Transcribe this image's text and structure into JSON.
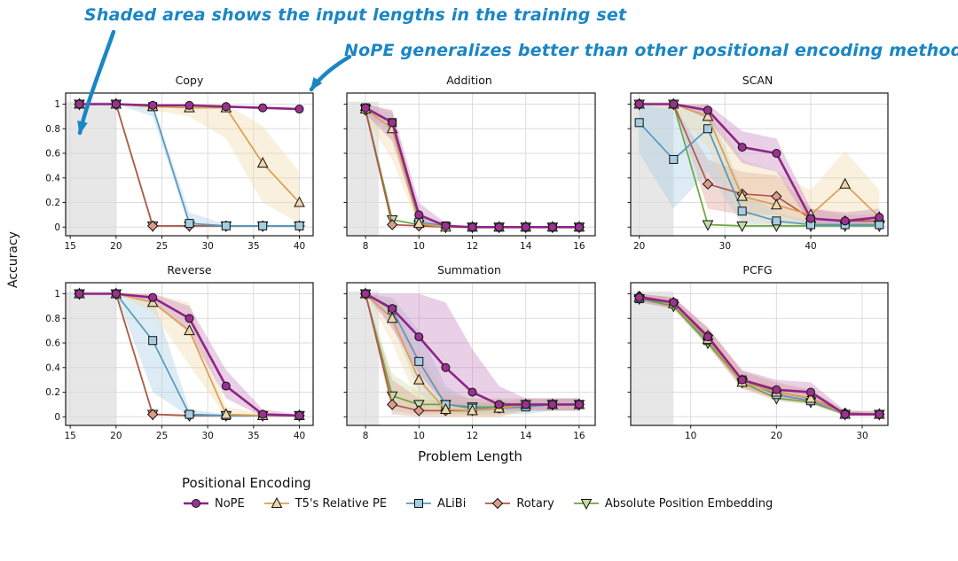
{
  "annotations": [
    {
      "text": "Shaded area shows the input lengths in the training set"
    },
    {
      "text": "NoPE generalizes better than other positional encoding methods"
    }
  ],
  "ylabel": "Accuracy",
  "xlabel": "Problem Length",
  "legend": {
    "title": "Positional Encoding"
  },
  "colors": {
    "annotation_blue": "#1a86c4",
    "train_region_gray": "#d7d7d7",
    "grid_gray": "#dcdcdc"
  },
  "series_styles": [
    {
      "name": "NoPE",
      "marker": "circle",
      "line_color": "#8e2486",
      "fill_color": "#9a3390",
      "band_color": "#c583bd",
      "line_width": 2.6
    },
    {
      "name": "T5's Relative PE",
      "marker": "triangle-up",
      "line_color": "#dc9f4e",
      "fill_color": "#eed7a8",
      "band_color": "#eed7a8",
      "line_width": 1.7
    },
    {
      "name": "ALiBi",
      "marker": "square",
      "line_color": "#5598be",
      "fill_color": "#a6cde2",
      "band_color": "#a6cde2",
      "line_width": 1.7
    },
    {
      "name": "Rotary",
      "marker": "diamond",
      "line_color": "#b2574a",
      "fill_color": "#dd9c8b",
      "band_color": "#dd9c8b",
      "line_width": 1.7
    },
    {
      "name": "Absolute Position Embedding",
      "marker": "triangle-down",
      "line_color": "#6aa63c",
      "fill_color": "#c2dda6",
      "band_color": "#c2dda6",
      "line_width": 1.7
    }
  ],
  "chart_data": [
    {
      "type": "line",
      "title": "Copy",
      "x": [
        16,
        20,
        24,
        28,
        32,
        36,
        40
      ],
      "xlim": [
        14.5,
        41.5
      ],
      "xticks": [
        15,
        20,
        25,
        30,
        35,
        40
      ],
      "ylim": [
        -0.07,
        1.09
      ],
      "yticks": [
        0,
        0.2,
        0.4,
        0.6,
        0.8,
        1
      ],
      "train_region": [
        14.5,
        20
      ],
      "show_ytick_labels": true,
      "series": [
        {
          "name": "NoPE",
          "values": [
            1,
            1,
            0.99,
            0.99,
            0.98,
            0.97,
            0.96
          ]
        },
        {
          "name": "T5's Relative PE",
          "values": [
            1,
            1,
            0.98,
            0.97,
            0.97,
            0.52,
            0.2
          ],
          "lo": [
            1,
            1,
            0.95,
            0.9,
            0.72,
            0.2,
            0.03
          ],
          "hi": [
            1,
            1,
            1,
            1,
            1,
            0.82,
            0.45
          ]
        },
        {
          "name": "ALiBi",
          "values": [
            1,
            1,
            0.98,
            0.03,
            0.01,
            0.01,
            0.01
          ],
          "lo": [
            1,
            1,
            0.9,
            0,
            0,
            0,
            0
          ],
          "hi": [
            1,
            1,
            1,
            0.12,
            0.02,
            0.02,
            0.02
          ]
        },
        {
          "name": "Rotary",
          "values": [
            1,
            1,
            0.01,
            0.01,
            0.01,
            0.01,
            0.01
          ]
        },
        {
          "name": "Absolute Position Embedding",
          "values": [
            1,
            1,
            0.01,
            0.01,
            0.01,
            0.01,
            0.01
          ]
        }
      ]
    },
    {
      "type": "line",
      "title": "Addition",
      "x": [
        8,
        9,
        10,
        11,
        12,
        13,
        14,
        15,
        16
      ],
      "xlim": [
        7.3,
        16.6
      ],
      "xticks": [
        8,
        10,
        12,
        14,
        16
      ],
      "ylim": [
        -0.07,
        1.09
      ],
      "yticks": [
        0,
        0.2,
        0.4,
        0.6,
        0.8,
        1
      ],
      "train_region": [
        7.3,
        8.5
      ],
      "show_ytick_labels": false,
      "series": [
        {
          "name": "NoPE",
          "values": [
            0.97,
            0.85,
            0.1,
            0.01,
            0,
            0,
            0,
            0,
            0
          ],
          "lo": [
            0.92,
            0.7,
            0.02,
            0,
            0,
            0,
            0,
            0,
            0
          ],
          "hi": [
            1,
            0.95,
            0.2,
            0.03,
            0,
            0,
            0,
            0,
            0
          ]
        },
        {
          "name": "T5's Relative PE",
          "values": [
            0.96,
            0.8,
            0.03,
            0,
            0,
            0,
            0,
            0,
            0
          ],
          "lo": [
            0.88,
            0.55,
            0,
            0,
            0,
            0,
            0,
            0,
            0
          ],
          "hi": [
            1,
            0.95,
            0.12,
            0.02,
            0,
            0,
            0,
            0,
            0
          ]
        },
        {
          "name": "ALiBi",
          "values": [
            0.97,
            0.85,
            0.04,
            0.01,
            0,
            0,
            0,
            0,
            0
          ],
          "lo": [
            0.93,
            0.75,
            0,
            0,
            0,
            0,
            0,
            0,
            0
          ],
          "hi": [
            1,
            0.93,
            0.1,
            0.02,
            0,
            0,
            0,
            0,
            0
          ]
        },
        {
          "name": "Rotary",
          "values": [
            0.95,
            0.02,
            0.01,
            0,
            0,
            0,
            0,
            0,
            0
          ]
        },
        {
          "name": "Absolute Position Embedding",
          "values": [
            0.96,
            0.06,
            0.02,
            0,
            0,
            0,
            0,
            0,
            0
          ]
        }
      ]
    },
    {
      "type": "line",
      "title": "SCAN",
      "x": [
        20,
        24,
        28,
        32,
        36,
        40,
        44,
        48
      ],
      "xlim": [
        19,
        49
      ],
      "xticks": [
        20,
        30,
        40
      ],
      "ylim": [
        -0.07,
        1.09
      ],
      "yticks": [
        0,
        0.2,
        0.4,
        0.6,
        0.8,
        1
      ],
      "train_region": [
        19,
        24
      ],
      "show_ytick_labels": false,
      "series": [
        {
          "name": "NoPE",
          "values": [
            1,
            1,
            0.95,
            0.65,
            0.6,
            0.07,
            0.05,
            0.08
          ],
          "lo": [
            1,
            1,
            0.88,
            0.52,
            0.45,
            0.02,
            0.02,
            0.02
          ],
          "hi": [
            1,
            1,
            1,
            0.78,
            0.72,
            0.15,
            0.12,
            0.15
          ]
        },
        {
          "name": "T5's Relative PE",
          "values": [
            1,
            1,
            0.9,
            0.25,
            0.18,
            0.1,
            0.35,
            0.08
          ],
          "lo": [
            1,
            0.95,
            0.65,
            0.05,
            0.02,
            0.02,
            0.05,
            0.02
          ],
          "hi": [
            1,
            1,
            1,
            0.55,
            0.45,
            0.3,
            0.62,
            0.3
          ]
        },
        {
          "name": "ALiBi",
          "values": [
            0.85,
            0.55,
            0.8,
            0.13,
            0.05,
            0.02,
            0.02,
            0.02
          ],
          "lo": [
            0.6,
            0.15,
            0.45,
            0.02,
            0,
            0,
            0,
            0
          ],
          "hi": [
            1,
            0.95,
            1,
            0.3,
            0.12,
            0.05,
            0.05,
            0.05
          ]
        },
        {
          "name": "Rotary",
          "values": [
            1,
            1,
            0.35,
            0.27,
            0.25,
            0.07,
            0.05,
            0.05
          ],
          "lo": [
            1,
            1,
            0.15,
            0.1,
            0.1,
            0.02,
            0.02,
            0.02
          ],
          "hi": [
            1,
            1,
            0.55,
            0.45,
            0.42,
            0.15,
            0.1,
            0.1
          ]
        },
        {
          "name": "Absolute Position Embedding",
          "values": [
            1,
            1,
            0.02,
            0.01,
            0.01,
            0.01,
            0.01,
            0.01
          ]
        }
      ]
    },
    {
      "type": "line",
      "title": "Reverse",
      "x": [
        16,
        20,
        24,
        28,
        32,
        36,
        40
      ],
      "xlim": [
        14.5,
        41.5
      ],
      "xticks": [
        15,
        20,
        25,
        30,
        35,
        40
      ],
      "ylim": [
        -0.07,
        1.09
      ],
      "yticks": [
        0,
        0.2,
        0.4,
        0.6,
        0.8,
        1
      ],
      "train_region": [
        14.5,
        20
      ],
      "show_ytick_labels": true,
      "series": [
        {
          "name": "NoPE",
          "values": [
            1,
            1,
            0.97,
            0.8,
            0.25,
            0.02,
            0.01
          ],
          "lo": [
            1,
            1,
            0.93,
            0.68,
            0.15,
            0,
            0
          ],
          "hi": [
            1,
            1,
            1,
            0.9,
            0.38,
            0.06,
            0.02
          ]
        },
        {
          "name": "T5's Relative PE",
          "values": [
            1,
            1,
            0.93,
            0.7,
            0.02,
            0.01,
            0.01
          ],
          "lo": [
            1,
            1,
            0.85,
            0.42,
            0,
            0,
            0
          ],
          "hi": [
            1,
            1,
            1,
            0.93,
            0.08,
            0.02,
            0.02
          ]
        },
        {
          "name": "ALiBi",
          "values": [
            1,
            1,
            0.62,
            0.02,
            0.01,
            0.01,
            0.01
          ],
          "lo": [
            1,
            1,
            0.2,
            0,
            0,
            0,
            0
          ],
          "hi": [
            1,
            1,
            0.98,
            0.06,
            0.02,
            0.02,
            0.02
          ]
        },
        {
          "name": "Rotary",
          "values": [
            1,
            1,
            0.02,
            0.01,
            0.01,
            0.01,
            0.01
          ]
        },
        {
          "name": "Absolute Position Embedding",
          "values": [
            1,
            1,
            0.02,
            0.01,
            0.01,
            0.01,
            0.01
          ]
        }
      ]
    },
    {
      "type": "line",
      "title": "Summation",
      "x": [
        8,
        9,
        10,
        11,
        12,
        13,
        14,
        15,
        16
      ],
      "xlim": [
        7.3,
        16.6
      ],
      "xticks": [
        8,
        10,
        12,
        14,
        16
      ],
      "ylim": [
        -0.07,
        1.09
      ],
      "yticks": [
        0,
        0.2,
        0.4,
        0.6,
        0.8,
        1
      ],
      "train_region": [
        7.3,
        8.5
      ],
      "show_ytick_labels": false,
      "series": [
        {
          "name": "NoPE",
          "values": [
            1,
            0.88,
            0.65,
            0.4,
            0.2,
            0.1,
            0.1,
            0.1,
            0.1
          ],
          "lo": [
            1,
            0.72,
            0.35,
            0.1,
            0.05,
            0.05,
            0.05,
            0.05,
            0.05
          ],
          "hi": [
            1,
            1,
            1,
            0.93,
            0.55,
            0.25,
            0.15,
            0.15,
            0.15
          ]
        },
        {
          "name": "T5's Relative PE",
          "values": [
            1,
            0.8,
            0.3,
            0.06,
            0.05,
            0.07,
            0.1,
            0.1,
            0.1
          ],
          "lo": [
            1,
            0.6,
            0.1,
            0,
            0,
            0,
            0.05,
            0.05,
            0.05
          ],
          "hi": [
            1,
            0.95,
            0.5,
            0.2,
            0.15,
            0.15,
            0.15,
            0.15,
            0.15
          ]
        },
        {
          "name": "ALiBi",
          "values": [
            1,
            0.87,
            0.45,
            0.1,
            0.07,
            0.07,
            0.08,
            0.1,
            0.1
          ],
          "lo": [
            1,
            0.75,
            0.2,
            0.02,
            0.02,
            0.02,
            0.02,
            0.05,
            0.05
          ],
          "hi": [
            1,
            0.97,
            0.7,
            0.25,
            0.12,
            0.12,
            0.12,
            0.15,
            0.15
          ]
        },
        {
          "name": "Rotary",
          "values": [
            1,
            0.1,
            0.05,
            0.05,
            0.05,
            0.07,
            0.1,
            0.1,
            0.1
          ],
          "lo": [
            1,
            0.02,
            0,
            0,
            0,
            0,
            0.05,
            0.05,
            0.05
          ],
          "hi": [
            1,
            0.3,
            0.15,
            0.12,
            0.1,
            0.12,
            0.15,
            0.15,
            0.15
          ]
        },
        {
          "name": "Absolute Position Embedding",
          "values": [
            1,
            0.17,
            0.1,
            0.1,
            0.08,
            0.08,
            0.1,
            0.1,
            0.1
          ],
          "lo": [
            1,
            0.05,
            0.02,
            0.02,
            0.02,
            0.02,
            0.05,
            0.05,
            0.05
          ],
          "hi": [
            1,
            0.35,
            0.2,
            0.18,
            0.15,
            0.15,
            0.15,
            0.15,
            0.15
          ]
        }
      ]
    },
    {
      "type": "line",
      "title": "PCFG",
      "x": [
        4,
        8,
        12,
        16,
        20,
        24,
        28,
        32
      ],
      "xlim": [
        3,
        33
      ],
      "xticks": [
        10,
        20,
        30
      ],
      "ylim": [
        -0.07,
        1.09
      ],
      "yticks": [
        0,
        0.2,
        0.4,
        0.6,
        0.8,
        1
      ],
      "train_region": [
        3,
        8
      ],
      "show_ytick_labels": false,
      "series": [
        {
          "name": "NoPE",
          "values": [
            0.97,
            0.93,
            0.65,
            0.3,
            0.22,
            0.2,
            0.02,
            0.02
          ],
          "lo": [
            0.93,
            0.88,
            0.58,
            0.24,
            0.15,
            0.13,
            0.01,
            0.01
          ],
          "hi": [
            1,
            0.97,
            0.72,
            0.38,
            0.3,
            0.28,
            0.05,
            0.05
          ]
        },
        {
          "name": "T5's Relative PE",
          "values": [
            0.97,
            0.92,
            0.63,
            0.28,
            0.2,
            0.15,
            0.02,
            0.02
          ],
          "lo": [
            0.93,
            0.87,
            0.57,
            0.22,
            0.14,
            0.1,
            0.01,
            0.01
          ],
          "hi": [
            1,
            0.96,
            0.7,
            0.35,
            0.27,
            0.22,
            0.04,
            0.04
          ]
        },
        {
          "name": "ALiBi",
          "values": [
            0.96,
            0.92,
            0.62,
            0.3,
            0.18,
            0.13,
            0.02,
            0.02
          ]
        },
        {
          "name": "Rotary",
          "values": [
            0.98,
            0.93,
            0.66,
            0.3,
            0.2,
            0.15,
            0.03,
            0.02
          ],
          "lo": [
            0.94,
            0.88,
            0.58,
            0.23,
            0.13,
            0.1,
            0.01,
            0.01
          ],
          "hi": [
            1,
            0.97,
            0.73,
            0.37,
            0.28,
            0.22,
            0.05,
            0.04
          ]
        },
        {
          "name": "Absolute Position Embedding",
          "values": [
            0.96,
            0.9,
            0.6,
            0.28,
            0.15,
            0.12,
            0.02,
            0.02
          ]
        }
      ]
    }
  ]
}
